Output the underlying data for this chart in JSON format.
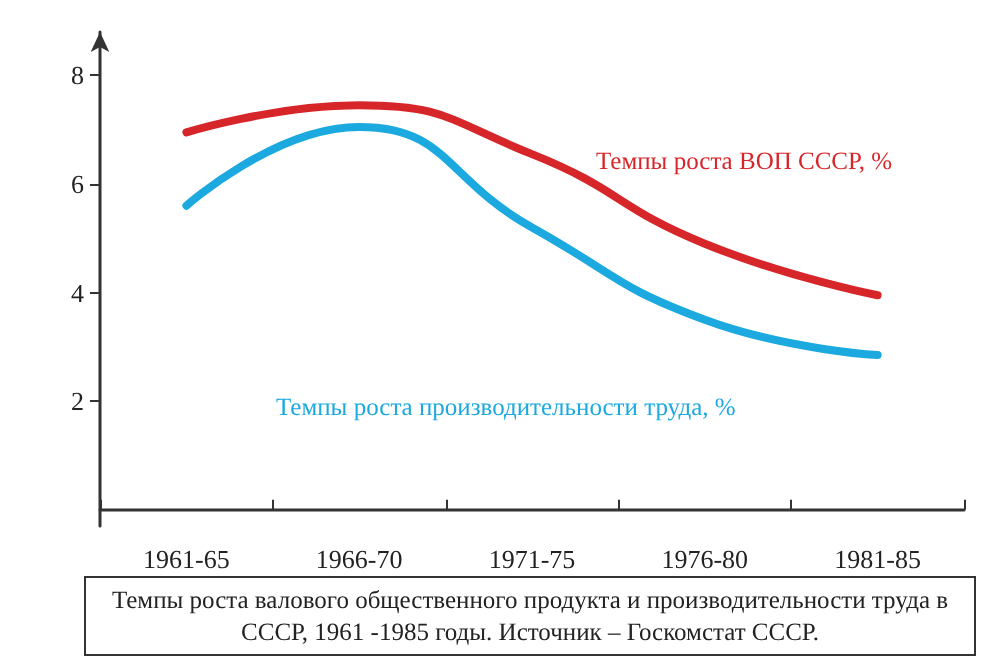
{
  "chart_data": {
    "type": "line",
    "categories": [
      "1961-65",
      "1966-70",
      "1971-75",
      "1976-80",
      "1981-85"
    ],
    "series": [
      {
        "name": "Темпы роста ВОП СССР, %",
        "color": "#d7262a",
        "values": [
          6.95,
          7.45,
          6.55,
          4.9,
          3.95
        ]
      },
      {
        "name": "Темпы роста производительности труда, %",
        "color": "#1ba9df",
        "values": [
          5.6,
          7.05,
          5.2,
          3.5,
          2.85
        ]
      }
    ],
    "ylim": [
      -0.3,
      8.8
    ],
    "yticks": [
      2,
      4,
      6,
      8
    ],
    "grid": false,
    "legend": false,
    "marker": "none",
    "line_style": "solid",
    "annotations": [
      "Темпы роста валового общественного продукта и производительности труда в СССР, 1961 -1985 годы. Источник – Госкомстат СССР."
    ]
  }
}
